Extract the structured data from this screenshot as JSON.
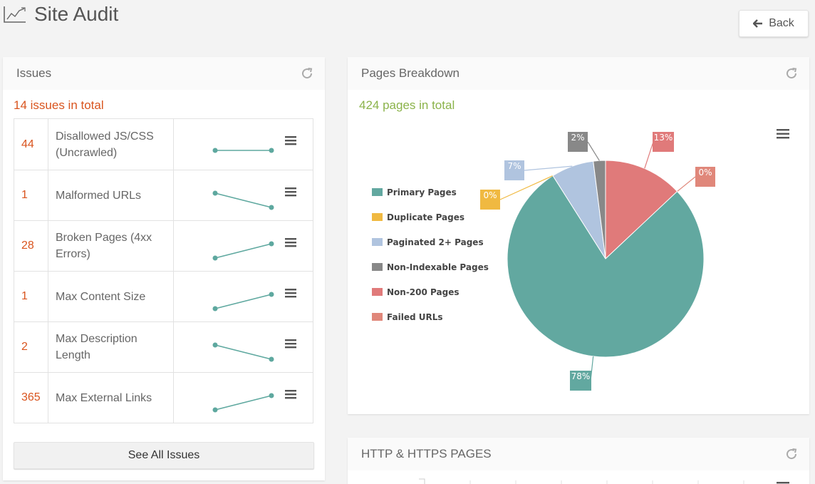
{
  "page": {
    "title": "Site Audit",
    "back_label": "Back"
  },
  "issues_panel": {
    "title": "Issues",
    "total": "14 issues in total",
    "see_all_label": "See All Issues",
    "accent": "#d9541e",
    "spark_color": "#5ea89f",
    "rows": [
      {
        "count": "44",
        "name": "Disallowed JS/CSS (Uncrawled)",
        "trend": [
          0,
          0
        ]
      },
      {
        "count": "1",
        "name": "Malformed URLs",
        "trend": [
          1,
          0
        ]
      },
      {
        "count": "28",
        "name": "Broken Pages (4xx Errors)",
        "trend": [
          0,
          1
        ]
      },
      {
        "count": "1",
        "name": "Max Content Size",
        "trend": [
          0,
          1
        ]
      },
      {
        "count": "2",
        "name": "Max Description Length",
        "trend": [
          1,
          0
        ]
      },
      {
        "count": "365",
        "name": "Max External Links",
        "trend": [
          0,
          1
        ]
      }
    ]
  },
  "pages_panel": {
    "title": "Pages Breakdown",
    "total": "424 pages in total",
    "chart_data": {
      "type": "pie",
      "legend_position": "left",
      "slices": [
        {
          "name": "Primary Pages",
          "value": 78,
          "label": "78%",
          "color": "#62a8a0"
        },
        {
          "name": "Duplicate Pages",
          "value": 0,
          "label": "0%",
          "color": "#f0b941"
        },
        {
          "name": "Paginated 2+ Pages",
          "value": 7,
          "label": "7%",
          "color": "#b0c4df"
        },
        {
          "name": "Non-Indexable Pages",
          "value": 2,
          "label": "2%",
          "color": "#888888"
        },
        {
          "name": "Non-200 Pages",
          "value": 13,
          "label": "13%",
          "color": "#e07a7a"
        },
        {
          "name": "Failed URLs",
          "value": 0,
          "label": "0%",
          "color": "#e0877a"
        }
      ]
    }
  },
  "http_panel": {
    "title": "HTTP & HTTPS PAGES"
  },
  "icons": [
    "chart-line-icon",
    "arrow-left-icon",
    "refresh-icon",
    "hamburger-menu-icon"
  ]
}
